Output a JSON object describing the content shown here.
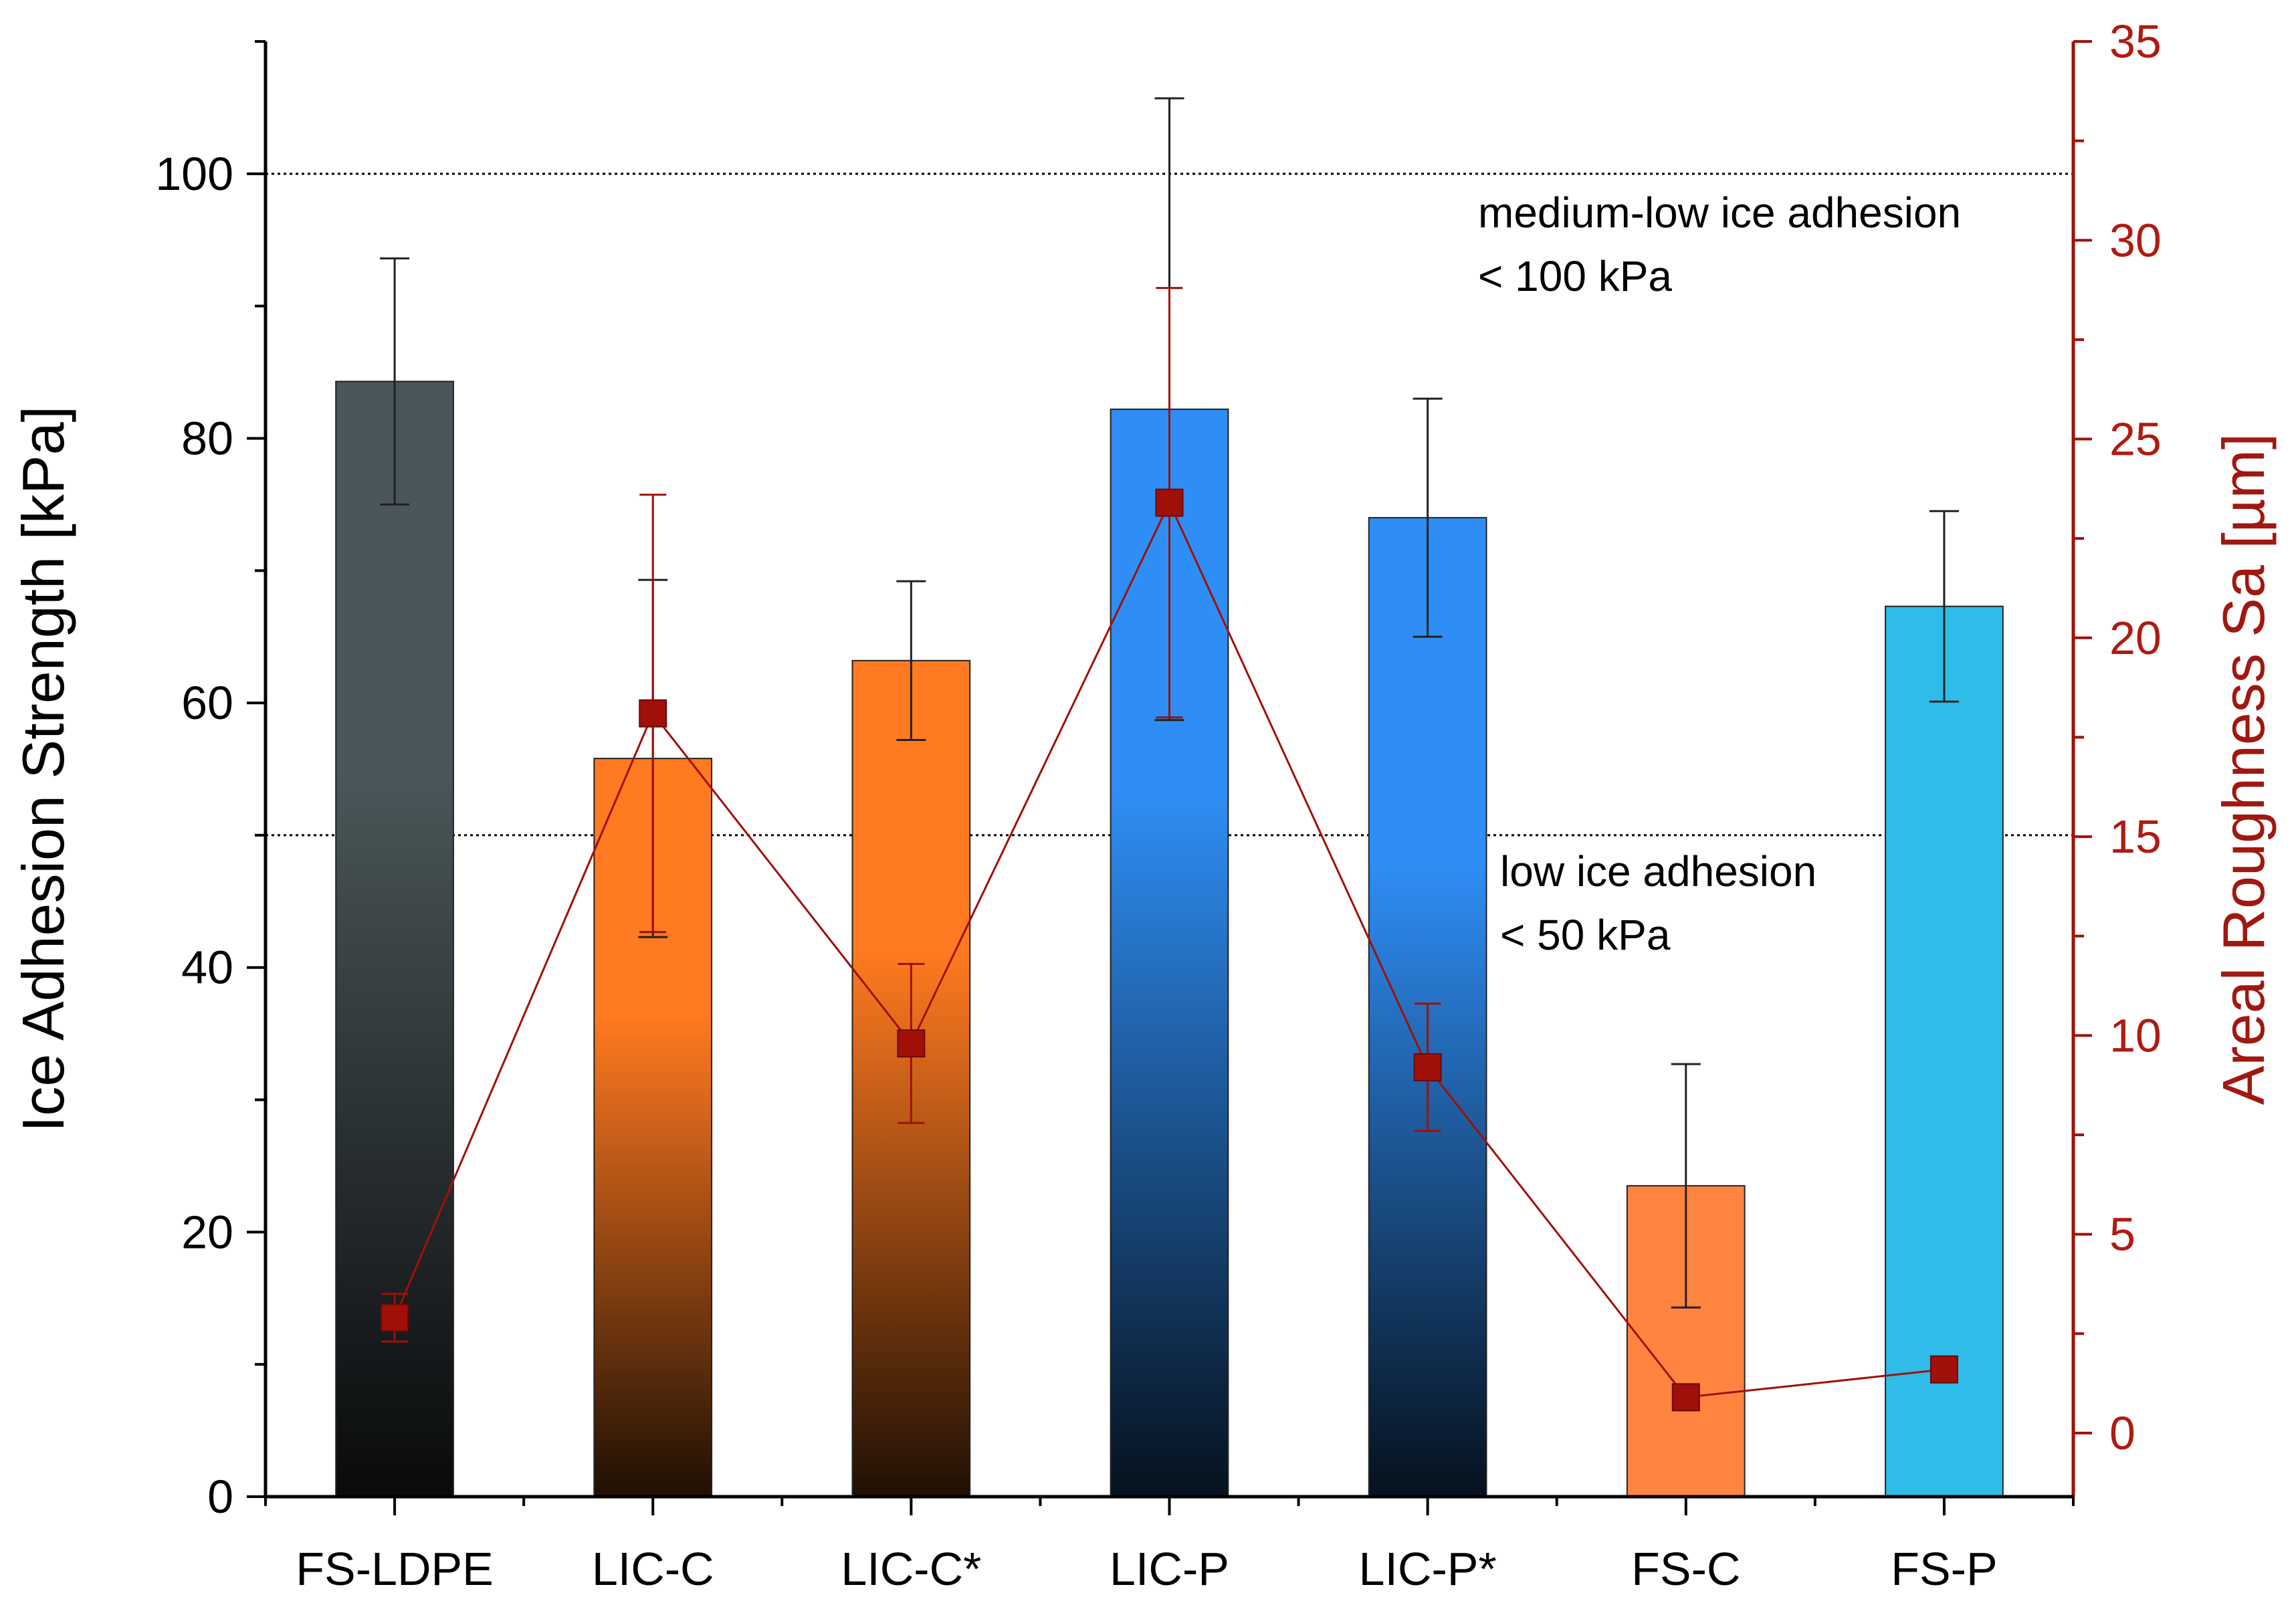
{
  "chart_data": {
    "type": "bar",
    "categories": [
      "FS-LDPE",
      "LIC-C",
      "LIC-C*",
      "LIC-P",
      "LIC-P*",
      "FS-C",
      "FS-P"
    ],
    "series": [
      {
        "name": "Ice Adhesion Strength",
        "axis": "left",
        "values": [
          84.3,
          55.8,
          63.2,
          82.2,
          74.0,
          23.5,
          67.3
        ],
        "errors": [
          9.3,
          13.5,
          6.0,
          23.5,
          9.0,
          9.2,
          7.2
        ],
        "colors": [
          "#4a5659",
          "#ff7a20",
          "#ff7a20",
          "#2f8ef5",
          "#2f8ef5",
          "#ff8440",
          "#2fbce8"
        ],
        "gradient_to_dark": [
          true,
          true,
          true,
          true,
          true,
          false,
          false
        ]
      },
      {
        "name": "Areal Roughness Sa",
        "axis": "right",
        "type": "line",
        "values": [
          2.9,
          18.1,
          9.8,
          23.4,
          9.2,
          0.9,
          1.6
        ],
        "errors": [
          0.6,
          5.5,
          2.0,
          5.4,
          1.6,
          0.3,
          0.1
        ],
        "segments_connected": [
          true,
          true,
          true,
          true,
          true,
          true
        ],
        "color": "#a01008"
      }
    ],
    "ylabel_left": "Ice Adhesion Strength [kPa]",
    "ylabel_right": "Areal Roughness Sa [µm]",
    "xlabel": "",
    "ylim_left": [
      0,
      110
    ],
    "yticks_left": [
      0,
      20,
      40,
      60,
      80,
      100
    ],
    "ylim_right": [
      -1.6,
      35
    ],
    "yticks_right": [
      0,
      5,
      10,
      15,
      20,
      25,
      30,
      35
    ],
    "reference_lines": [
      {
        "value": 100,
        "axis": "left",
        "style": "dotted"
      },
      {
        "value": 50,
        "axis": "left",
        "style": "dotted"
      }
    ],
    "annotations": [
      {
        "line1": "medium-low ice adhesion",
        "line2": "< 100 kPa"
      },
      {
        "line1": "low ice adhesion",
        "line2": "< 50 kPa"
      }
    ],
    "grid": false
  },
  "colors": {
    "axis_left": "#000000",
    "axis_right": "#a01008",
    "marker": "#a01008"
  }
}
